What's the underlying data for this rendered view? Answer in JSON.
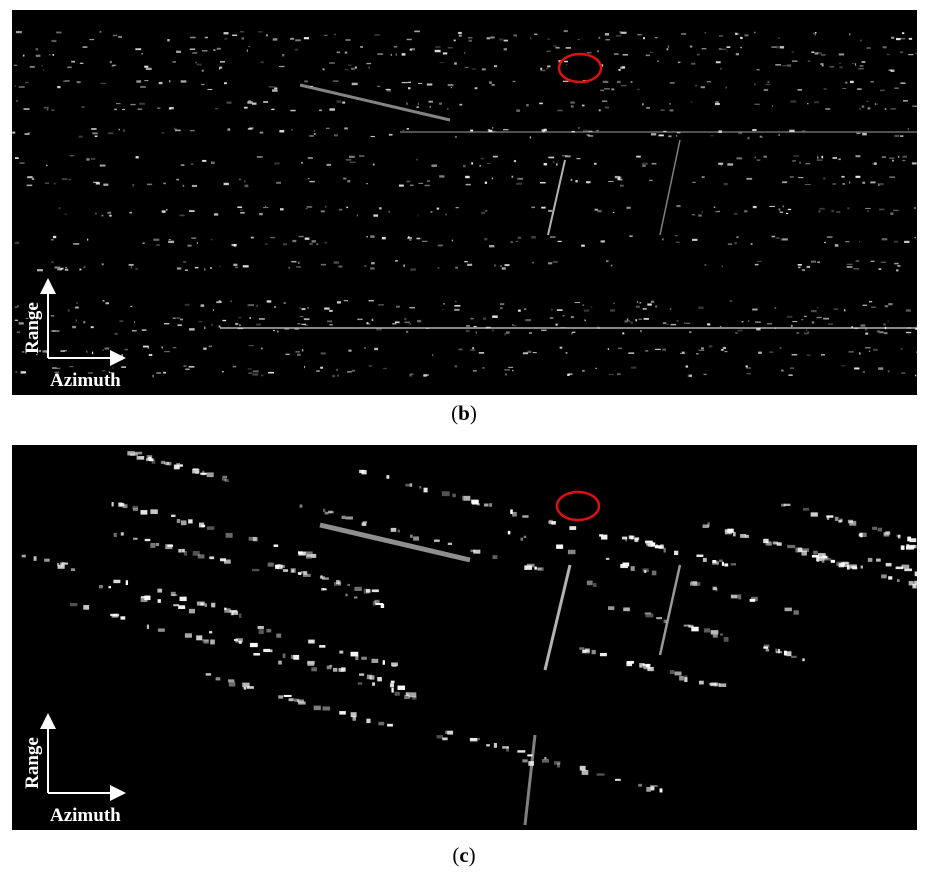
{
  "panels": [
    {
      "caption": [
        "(",
        "b",
        ")"
      ],
      "range_label": "Range",
      "azimuth_label": "Azimuth"
    },
    {
      "caption": [
        "(",
        "c",
        ")"
      ],
      "range_label": "Range",
      "azimuth_label": "Azimuth"
    }
  ]
}
